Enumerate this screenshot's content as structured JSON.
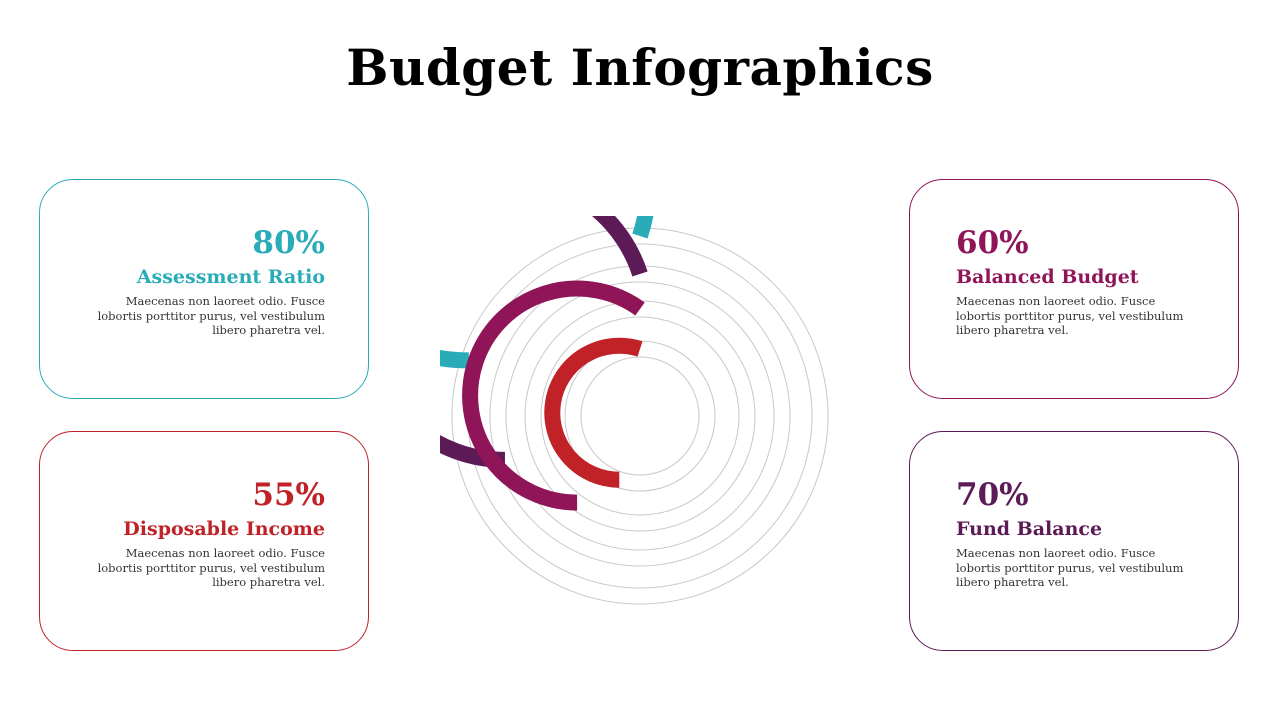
{
  "title": "Budget Infographics",
  "colors": {
    "assessment": "#2aacb8",
    "fund": "#5c1a57",
    "balanced": "#8f1458",
    "disposable": "#c02227",
    "track": "#c8c8c8"
  },
  "cards": [
    {
      "id": "assessment",
      "percent": "80%",
      "label": "Assessment  Ratio",
      "description": "Maecenas non laoreet odio. Fusce lobortis porttitor purus, vel vestibulum libero pharetra vel."
    },
    {
      "id": "disposable",
      "percent": "55%",
      "label": "Disposable Income",
      "description": "Maecenas non laoreet odio. Fusce lobortis porttitor purus, vel vestibulum libero pharetra vel."
    },
    {
      "id": "balanced",
      "percent": "60%",
      "label": "Balanced Budget",
      "description": "Maecenas non laoreet odio. Fusce lobortis porttitor purus, vel vestibulum libero pharetra vel."
    },
    {
      "id": "fund",
      "percent": "70%",
      "label": "Fund Balance",
      "description": "Maecenas non laoreet odio. Fusce lobortis porttitor purus, vel vestibulum libero pharetra vel."
    }
  ],
  "chart_data": {
    "type": "radial-bar",
    "categories": [
      "Assessment  Ratio",
      "Fund Balance",
      "Balanced Budget",
      "Disposable Income"
    ],
    "values": [
      80,
      70,
      60,
      55
    ],
    "unit": "%",
    "max": 100
  }
}
